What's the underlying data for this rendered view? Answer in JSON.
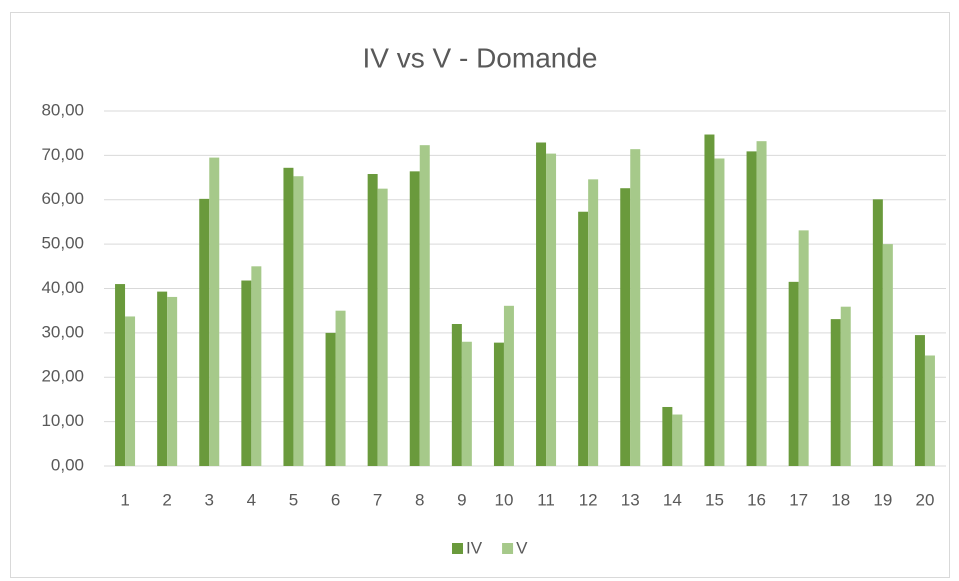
{
  "chart_data": {
    "type": "bar",
    "title": "IV vs V - Domande",
    "categories": [
      "1",
      "2",
      "3",
      "4",
      "5",
      "6",
      "7",
      "8",
      "9",
      "10",
      "11",
      "12",
      "13",
      "14",
      "15",
      "16",
      "17",
      "18",
      "19",
      "20"
    ],
    "series": [
      {
        "name": "IV",
        "color": "#6a9a3c",
        "values": [
          41.0,
          39.3,
          60.2,
          41.8,
          67.2,
          30.0,
          65.8,
          66.4,
          32.0,
          27.8,
          72.9,
          57.3,
          62.6,
          13.3,
          74.7,
          70.9,
          41.5,
          33.1,
          60.1,
          29.5
        ]
      },
      {
        "name": "V",
        "color": "#a6c98a",
        "values": [
          33.7,
          38.1,
          69.5,
          45.0,
          65.3,
          35.0,
          62.5,
          72.3,
          28.0,
          36.1,
          70.4,
          64.6,
          71.4,
          11.6,
          69.3,
          73.2,
          53.1,
          35.9,
          50.0,
          24.9
        ]
      }
    ],
    "ylim": [
      0,
      80
    ],
    "yticks": [
      {
        "value": 0,
        "label": "0,00"
      },
      {
        "value": 10,
        "label": "10,00"
      },
      {
        "value": 20,
        "label": "20,00"
      },
      {
        "value": 30,
        "label": "30,00"
      },
      {
        "value": 40,
        "label": "40,00"
      },
      {
        "value": 50,
        "label": "50,00"
      },
      {
        "value": 60,
        "label": "60,00"
      },
      {
        "value": 70,
        "label": "70,00"
      },
      {
        "value": 80,
        "label": "80,00"
      }
    ],
    "grid": true,
    "legend": "bottom"
  }
}
